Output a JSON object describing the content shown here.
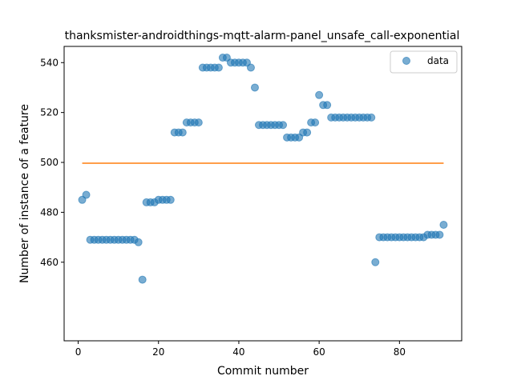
{
  "chart_data": {
    "type": "scatter",
    "title": "thanksmister-androidthings-mqtt-alarm-panel_unsafe_call-exponential",
    "xlabel": "Commit number",
    "ylabel": "Number of instance of a feature",
    "xlim": [
      -3.5,
      95.5
    ],
    "ylim": [
      428.5,
      546.5
    ],
    "x_ticks": [
      0,
      20,
      40,
      60,
      80
    ],
    "y_ticks": [
      460,
      480,
      500,
      520,
      540
    ],
    "grid": false,
    "legend_position": "upper right",
    "series": [
      {
        "name": "data",
        "kind": "points",
        "color": "#1f77b4",
        "x": [
          1,
          2,
          3,
          4,
          5,
          6,
          7,
          8,
          9,
          10,
          11,
          12,
          13,
          14,
          15,
          16,
          17,
          18,
          19,
          20,
          21,
          22,
          23,
          24,
          25,
          26,
          27,
          28,
          29,
          30,
          31,
          32,
          33,
          34,
          35,
          36,
          37,
          38,
          39,
          40,
          41,
          42,
          43,
          44,
          45,
          46,
          47,
          48,
          49,
          50,
          51,
          52,
          53,
          54,
          55,
          56,
          57,
          58,
          59,
          60,
          61,
          62,
          63,
          64,
          65,
          66,
          67,
          68,
          69,
          70,
          71,
          72,
          73,
          74,
          75,
          76,
          77,
          78,
          79,
          80,
          81,
          82,
          83,
          84,
          85,
          86,
          87,
          88,
          89,
          90,
          91
        ],
        "y": [
          485,
          487,
          469,
          469,
          469,
          469,
          469,
          469,
          469,
          469,
          469,
          469,
          469,
          469,
          468,
          453,
          484,
          484,
          484,
          485,
          485,
          485,
          485,
          512,
          512,
          512,
          516,
          516,
          516,
          516,
          538,
          538,
          538,
          538,
          538,
          542,
          542,
          540,
          540,
          540,
          540,
          540,
          538,
          530,
          515,
          515,
          515,
          515,
          515,
          515,
          515,
          510,
          510,
          510,
          510,
          512,
          512,
          516,
          516,
          527,
          523,
          523,
          518,
          518,
          518,
          518,
          518,
          518,
          518,
          518,
          518,
          518,
          518,
          460,
          470,
          470,
          470,
          470,
          470,
          470,
          470,
          470,
          470,
          470,
          470,
          470,
          471,
          471,
          471,
          471,
          475
        ]
      },
      {
        "kind": "line",
        "color": "#ff7f0e",
        "x": [
          1,
          91
        ],
        "y": [
          499.7,
          499.7
        ]
      }
    ]
  }
}
